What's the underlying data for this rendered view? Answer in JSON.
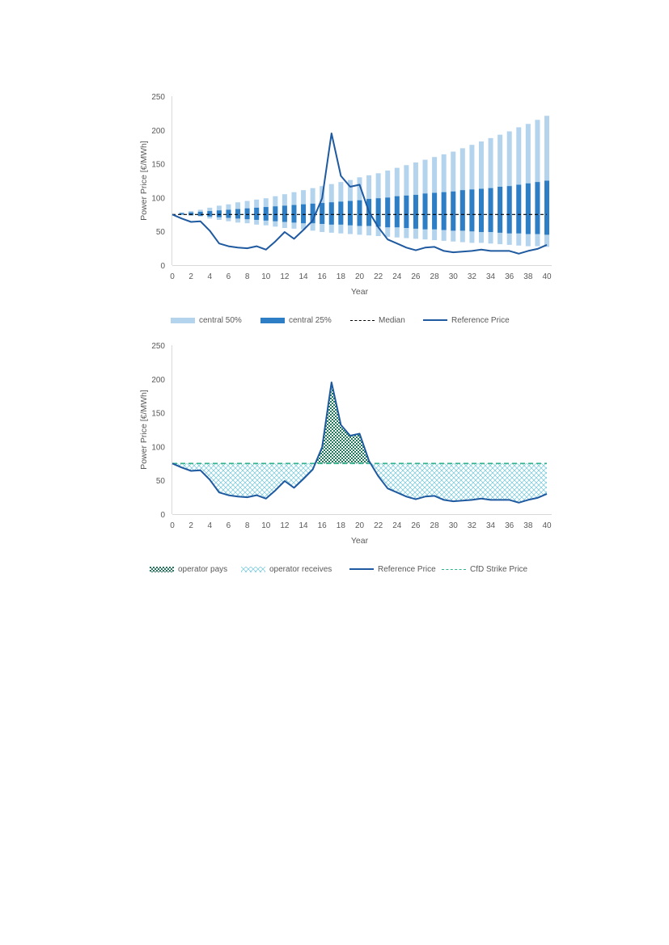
{
  "chart_data": [
    {
      "type": "bar",
      "title": "",
      "xlabel": "Year",
      "ylabel": "Power Price [€/MWh]",
      "ylim": [
        0,
        250
      ],
      "xlim": [
        0,
        40
      ],
      "yticks": [
        0,
        50,
        100,
        150,
        200,
        250
      ],
      "xticks": [
        0,
        2,
        4,
        6,
        8,
        10,
        12,
        14,
        16,
        18,
        20,
        22,
        24,
        26,
        28,
        30,
        32,
        34,
        36,
        38,
        40
      ],
      "grid": false,
      "legend_position": "bottom",
      "legend": [
        "central 50%",
        "central 25%",
        "Median",
        "Reference Price"
      ],
      "x": [
        1,
        2,
        3,
        4,
        5,
        6,
        7,
        8,
        9,
        10,
        11,
        12,
        13,
        14,
        15,
        16,
        17,
        18,
        19,
        20,
        21,
        22,
        23,
        24,
        25,
        26,
        27,
        28,
        29,
        30,
        31,
        32,
        33,
        34,
        35,
        36,
        37,
        38,
        39,
        40
      ],
      "series": [
        {
          "name": "central 50%",
          "kind": "floating-bar",
          "color": "#b4d4ee",
          "low": [
            74,
            73,
            72,
            69,
            67,
            65,
            63,
            62,
            60,
            59,
            57,
            55,
            54,
            53,
            51,
            49,
            48,
            47,
            46,
            45,
            44,
            43,
            42,
            41,
            40,
            39,
            38,
            37,
            36,
            35,
            34,
            33,
            33,
            32,
            31,
            30,
            29,
            28,
            28,
            27
          ],
          "high": [
            78,
            80,
            82,
            85,
            88,
            90,
            93,
            95,
            97,
            99,
            102,
            105,
            108,
            111,
            114,
            117,
            120,
            123,
            126,
            130,
            133,
            136,
            140,
            144,
            148,
            152,
            156,
            160,
            164,
            168,
            173,
            178,
            183,
            188,
            193,
            198,
            204,
            209,
            215,
            221
          ]
        },
        {
          "name": "central 25%",
          "kind": "floating-bar",
          "color": "#2e7ec5",
          "low": [
            75,
            74,
            73,
            72,
            71,
            70,
            69,
            68,
            67,
            66,
            65,
            64,
            63,
            62,
            62,
            61,
            60,
            60,
            59,
            58,
            58,
            57,
            56,
            56,
            55,
            54,
            53,
            53,
            52,
            51,
            51,
            50,
            49,
            49,
            48,
            47,
            47,
            46,
            46,
            45
          ],
          "high": [
            77,
            78,
            79,
            80,
            81,
            82,
            83,
            84,
            85,
            86,
            87,
            88,
            89,
            90,
            91,
            92,
            93,
            94,
            95,
            96,
            98,
            99,
            100,
            102,
            103,
            104,
            106,
            107,
            108,
            109,
            111,
            112,
            113,
            114,
            116,
            117,
            119,
            121,
            123,
            125
          ]
        },
        {
          "name": "Median",
          "kind": "dashed-line",
          "color": "#000000",
          "x": [
            0,
            40
          ],
          "y": [
            75,
            75
          ]
        },
        {
          "name": "Reference Price",
          "kind": "line",
          "color": "#1f5aa0",
          "x": [
            0,
            1,
            2,
            3,
            4,
            5,
            6,
            7,
            8,
            9,
            10,
            11,
            12,
            13,
            14,
            15,
            16,
            17,
            18,
            19,
            20,
            21,
            22,
            23,
            24,
            25,
            26,
            27,
            28,
            29,
            30,
            31,
            32,
            33,
            34,
            35,
            36,
            37,
            38,
            39,
            40
          ],
          "y": [
            75,
            69,
            64,
            65,
            51,
            32,
            28,
            26,
            25,
            28,
            23,
            35,
            49,
            39,
            52,
            66,
            99,
            195,
            132,
            116,
            119,
            79,
            56,
            38,
            32,
            26,
            22,
            26,
            27,
            21,
            19,
            20,
            21,
            23,
            21,
            21,
            21,
            17,
            21,
            24,
            30
          ]
        }
      ]
    },
    {
      "type": "area",
      "title": "",
      "xlabel": "Year",
      "ylabel": "Power Price [€/MWh]",
      "ylim": [
        0,
        250
      ],
      "xlim": [
        0,
        40
      ],
      "yticks": [
        0,
        50,
        100,
        150,
        200,
        250
      ],
      "xticks": [
        0,
        2,
        4,
        6,
        8,
        10,
        12,
        14,
        16,
        18,
        20,
        22,
        24,
        26,
        28,
        30,
        32,
        34,
        36,
        38,
        40
      ],
      "grid": false,
      "legend_position": "bottom",
      "legend": [
        "operator pays",
        "operator receives",
        "Reference Price",
        "CfD Strike Price"
      ],
      "strike_price": 75,
      "series": [
        {
          "name": "operator pays",
          "kind": "fill-above-strike",
          "color": "#1e7a5a"
        },
        {
          "name": "operator receives",
          "kind": "fill-below-strike",
          "color": "#6fc6da"
        },
        {
          "name": "Reference Price",
          "kind": "line",
          "color": "#1f5aa0",
          "x": [
            0,
            1,
            2,
            3,
            4,
            5,
            6,
            7,
            8,
            9,
            10,
            11,
            12,
            13,
            14,
            15,
            16,
            17,
            18,
            19,
            20,
            21,
            22,
            23,
            24,
            25,
            26,
            27,
            28,
            29,
            30,
            31,
            32,
            33,
            34,
            35,
            36,
            37,
            38,
            39,
            40
          ],
          "y": [
            75,
            69,
            64,
            65,
            51,
            32,
            28,
            26,
            25,
            28,
            23,
            35,
            49,
            39,
            52,
            66,
            99,
            195,
            132,
            116,
            119,
            79,
            56,
            38,
            32,
            26,
            22,
            26,
            27,
            21,
            19,
            20,
            21,
            23,
            21,
            21,
            21,
            17,
            21,
            24,
            30
          ]
        },
        {
          "name": "CfD Strike Price",
          "kind": "dashed-line",
          "color": "#2db38a",
          "x": [
            0,
            40
          ],
          "y": [
            75,
            75
          ]
        }
      ]
    }
  ]
}
